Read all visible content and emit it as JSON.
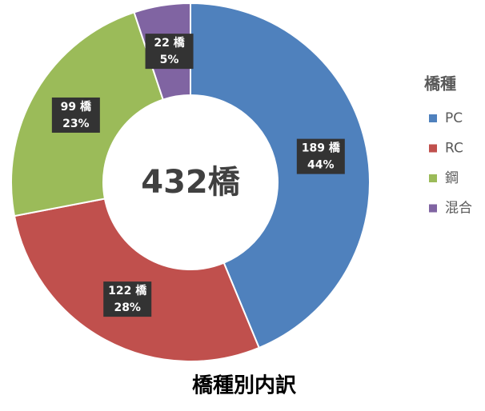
{
  "chart_data": {
    "type": "donut",
    "title": "橋種別内訳",
    "center_label": "432橋",
    "legend_title": "橋種",
    "categories": [
      "PC",
      "RC",
      "鋼",
      "混合"
    ],
    "values": [
      189,
      122,
      99,
      22
    ],
    "value_labels": [
      "189 橋",
      "122 橋",
      "99 橋",
      "22 橋"
    ],
    "percent_labels": [
      "44%",
      "28%",
      "23%",
      "5%"
    ],
    "colors": [
      "#4f81bd",
      "#c0504d",
      "#9bbb59",
      "#8064a2"
    ],
    "legend": "right"
  }
}
